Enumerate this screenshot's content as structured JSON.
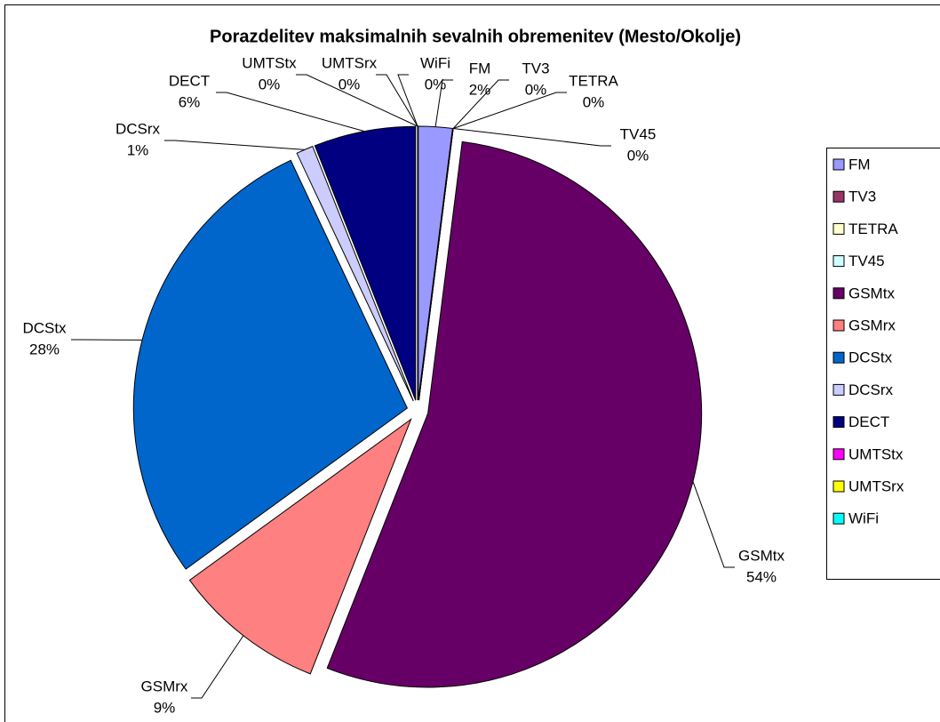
{
  "chart_data": {
    "type": "pie",
    "title": "Porazdelitev maksimalnih sevalnih obremenitev (Mesto/Okolje)",
    "categories": [
      "FM",
      "TV3",
      "TETRA",
      "TV45",
      "GSMtx",
      "GSMrx",
      "DCStx",
      "DCSrx",
      "DECT",
      "UMTStx",
      "UMTSrx",
      "WiFi"
    ],
    "values": [
      2,
      0,
      0,
      0,
      54,
      9,
      28,
      1,
      6,
      0,
      0,
      0
    ],
    "value_labels": [
      "2%",
      "0%",
      "0%",
      "0%",
      "54%",
      "9%",
      "28%",
      "1%",
      "6%",
      "0%",
      "0%",
      "0%"
    ],
    "colors": [
      "#9999ff",
      "#993366",
      "#ffffcc",
      "#ccffff",
      "#660066",
      "#ff8080",
      "#0066cc",
      "#ccccff",
      "#000080",
      "#ff00ff",
      "#ffff00",
      "#00ffff"
    ],
    "legend": "right"
  }
}
